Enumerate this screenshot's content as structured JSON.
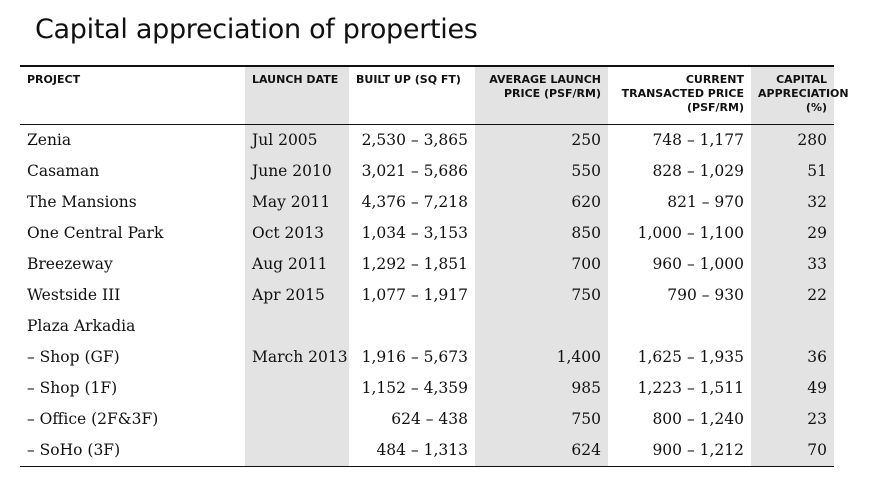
{
  "title": "Capital appreciation of properties",
  "columns": [
    "PROJECT",
    "LAUNCH DATE",
    "BUILT UP (SQ FT)",
    "AVERAGE LAUNCH PRICE (PSF/RM)",
    "CURRENT TRANSACTED PRICE (PSF/RM)",
    "CAPITAL APPRECIATION (%)"
  ],
  "rows": [
    [
      "Zenia",
      "Jul 2005",
      "2,530 – 3,865",
      "250",
      "748 – 1,177",
      "280"
    ],
    [
      "Casaman",
      "June 2010",
      "3,021 – 5,686",
      "550",
      "828 – 1,029",
      "51"
    ],
    [
      "The Mansions",
      "May 2011",
      "4,376 – 7,218",
      "620",
      "821 – 970",
      "32"
    ],
    [
      "One Central Park",
      "Oct 2013",
      "1,034 – 3,153",
      "850",
      "1,000 – 1,100",
      "29"
    ],
    [
      "Breezeway",
      "Aug 2011",
      "1,292 – 1,851",
      "700",
      "960 – 1,000",
      "33"
    ],
    [
      "Westside III",
      "Apr 2015",
      "1,077 – 1,917",
      "750",
      "790 – 930",
      "22"
    ],
    [
      "Plaza Arkadia",
      "",
      "",
      "",
      "",
      ""
    ],
    [
      "–  Shop (GF)",
      "March 2013",
      "1,916 – 5,673",
      "1,400",
      "1,625 – 1,935",
      "36"
    ],
    [
      "–  Shop (1F)",
      "",
      "1,152 – 4,359",
      "985",
      "1,223 – 1,511",
      "49"
    ],
    [
      "–  Office (2F&3F)",
      "",
      "624 – 438",
      "750",
      "800 – 1,240",
      "23"
    ],
    [
      "–  SoHo (3F)",
      "",
      "484 – 1,313",
      "624",
      "900 – 1,212",
      "70"
    ]
  ]
}
